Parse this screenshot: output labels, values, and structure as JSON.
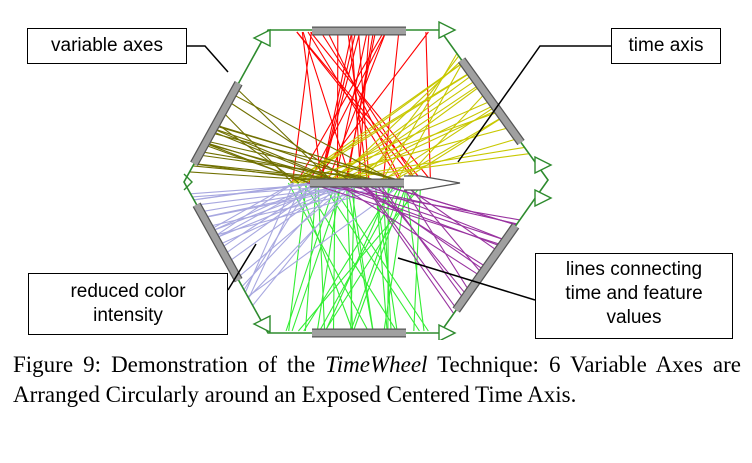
{
  "callouts": {
    "variable_axes": "variable axes",
    "time_axis": "time axis",
    "reduced_color": [
      "reduced color",
      "intensity"
    ],
    "lines_connecting": [
      "lines connecting",
      "time and feature",
      "values"
    ]
  },
  "caption": {
    "prefix": "Figure 9: Demonstration of the ",
    "technique": "TimeWheel",
    "suffix": " Technique: 6 Variable Axes are Arranged Circularly around an Exposed Centered Time Axis."
  },
  "colors": {
    "frame": "#2e8b2e",
    "axis_bar": "#a0a0a0",
    "red_lines": "#ff0000",
    "yellow_lines": "#c8c800",
    "olive_lines": "#707000",
    "lavender_lines": "#a8a8e0",
    "purple_lines": "#9933a0",
    "green_lines": "#33ee33"
  }
}
